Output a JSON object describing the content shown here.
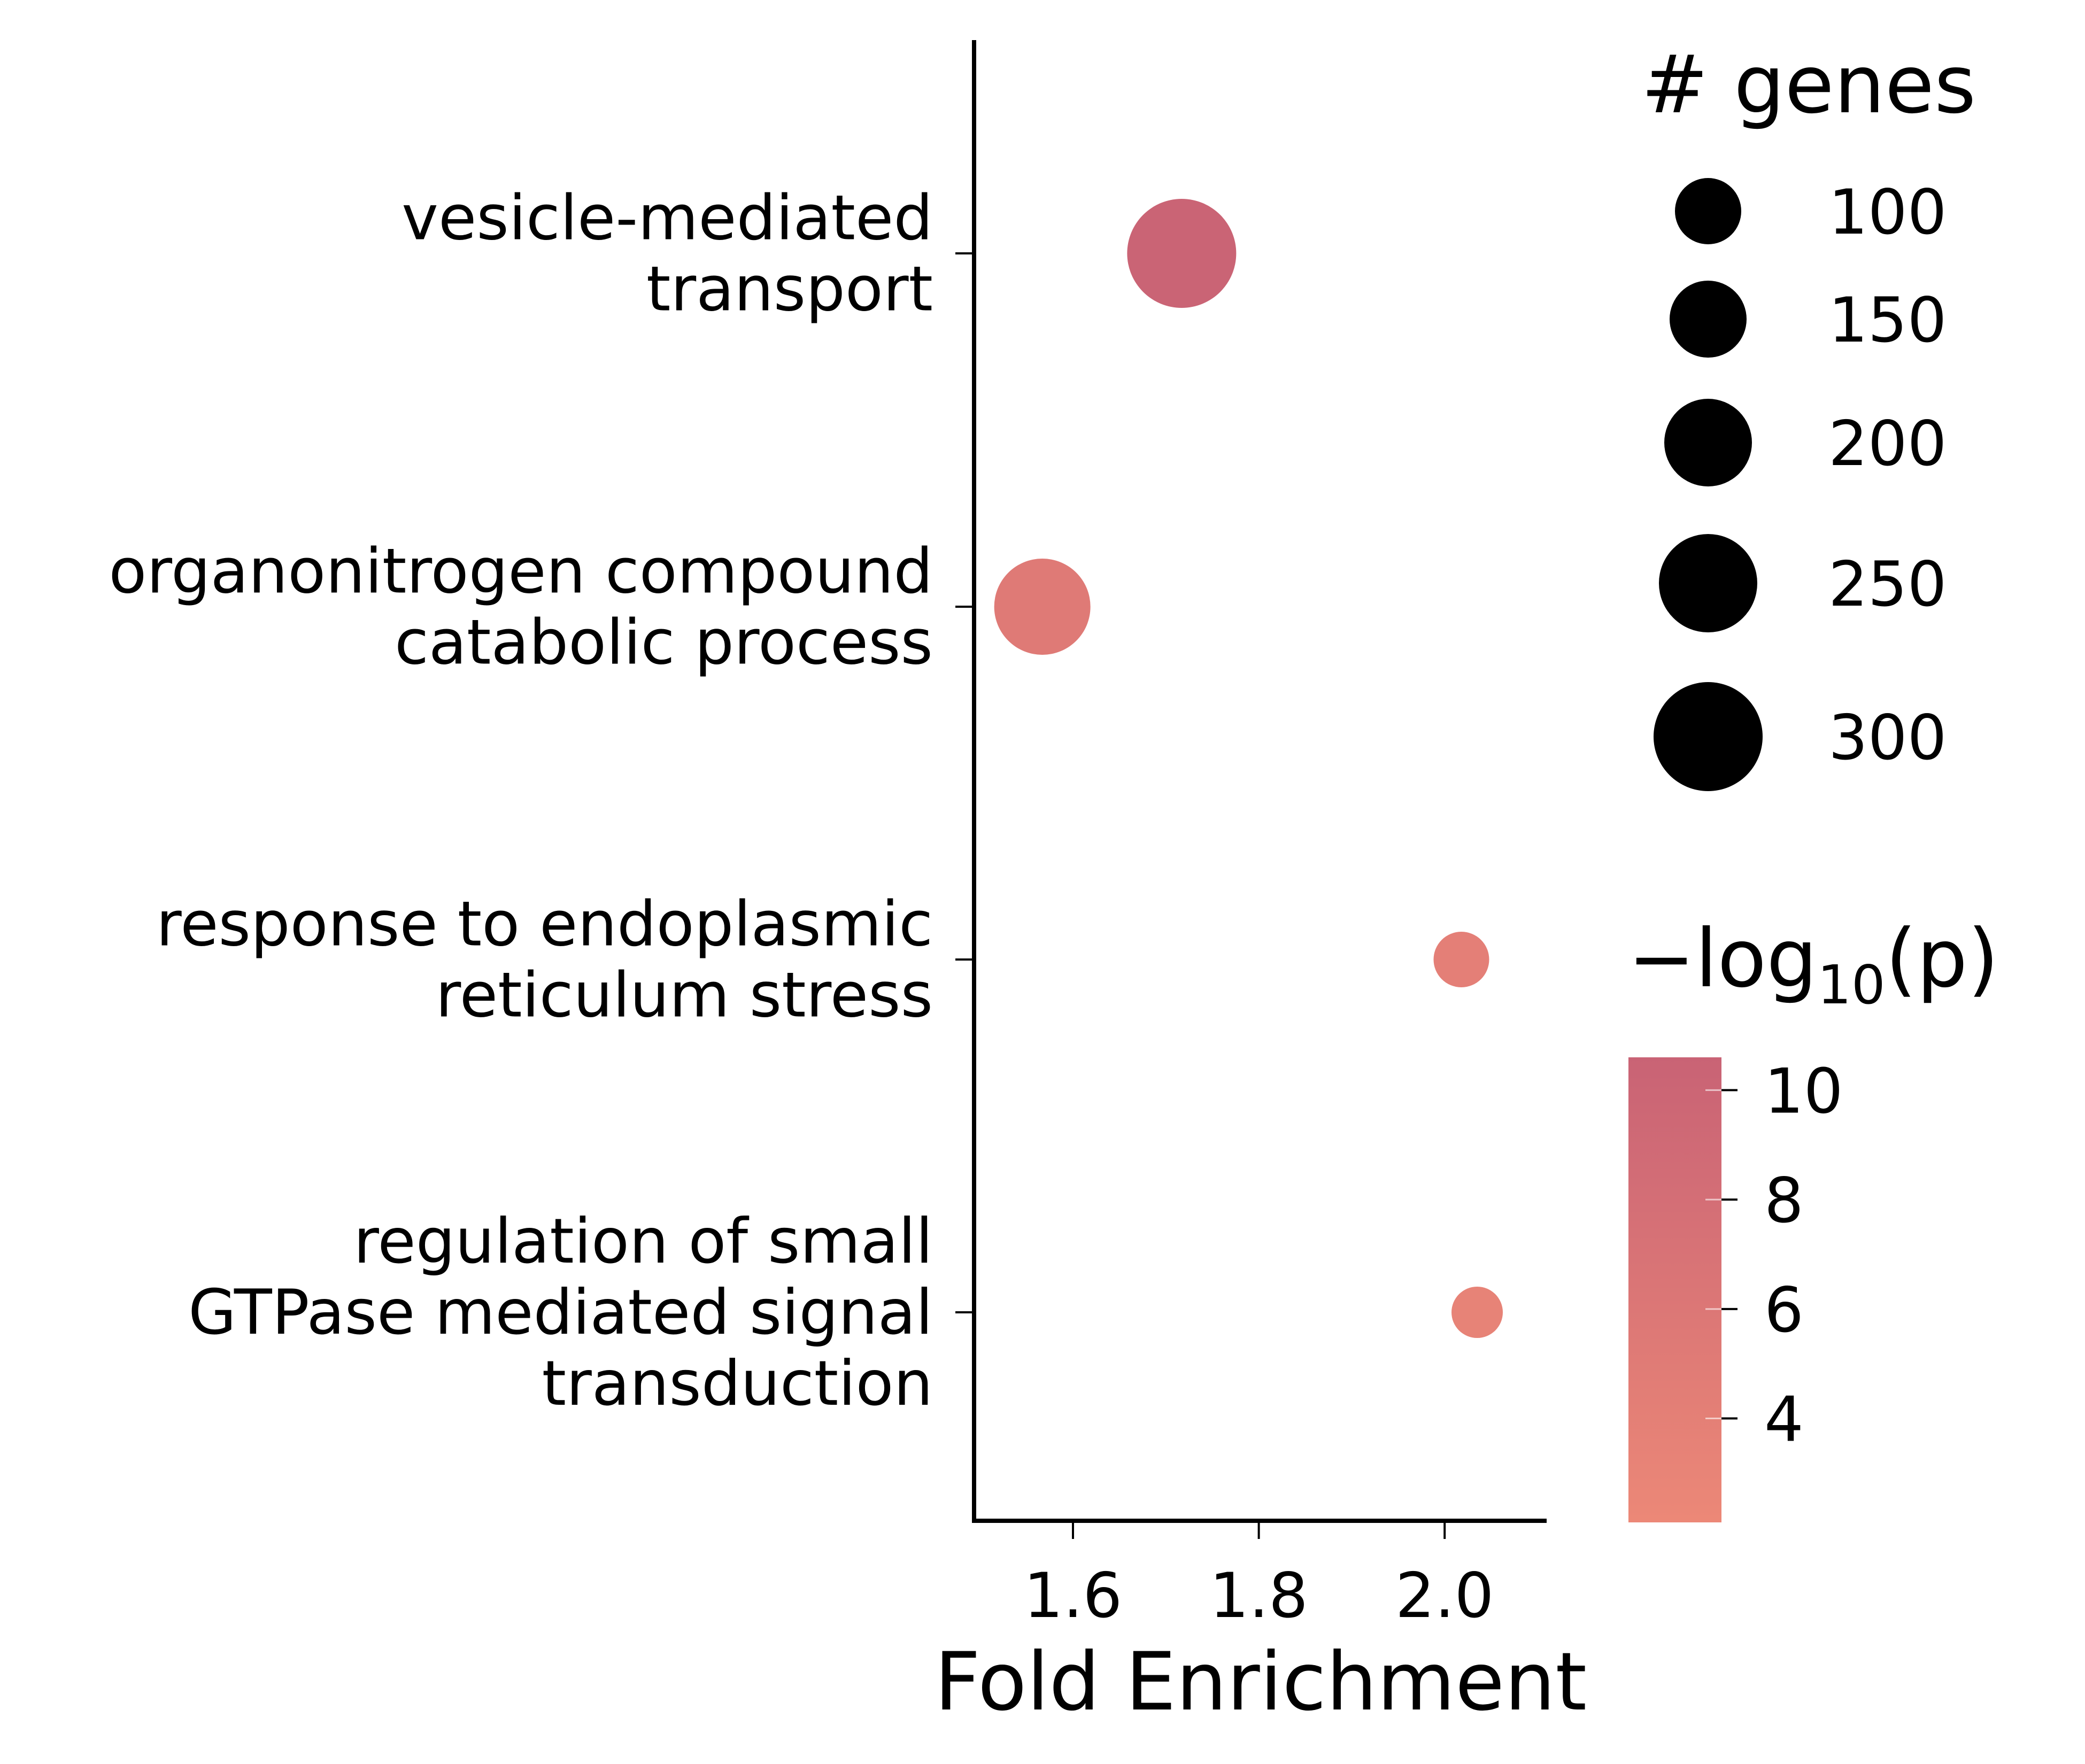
{
  "chart_data": {
    "type": "scatter",
    "xlabel": "Fold Enrichment",
    "xlim": [
      1.5,
      2.11
    ],
    "xticks": [
      "1.6",
      "1.8",
      "2.0"
    ],
    "xtick_values": [
      1.6,
      1.8,
      2.0
    ],
    "categories": [
      [
        "vesicle-mediated",
        "transport"
      ],
      [
        "organonitrogen compound",
        "catabolic process"
      ],
      [
        "response to endoplasmic",
        "reticulum stress"
      ],
      [
        "regulation of small",
        "GTPase mediated signal",
        "transduction"
      ]
    ],
    "points": [
      {
        "x": 1.717,
        "genes": 300,
        "neg_log10_p": 10.4
      },
      {
        "x": 1.567,
        "genes": 240,
        "neg_log10_p": 5.3
      },
      {
        "x": 2.018,
        "genes": 50,
        "neg_log10_p": 4.1
      },
      {
        "x": 2.035,
        "genes": 30,
        "neg_log10_p": 3.3
      }
    ],
    "size_legend": {
      "title": "# genes",
      "values": [
        100,
        150,
        200,
        250,
        300
      ],
      "labels": [
        "100",
        "150",
        "200",
        "250",
        "300"
      ]
    },
    "color_legend": {
      "title_main": "−log",
      "title_sub": "10",
      "title_tail": "(p)",
      "ticks": [
        10,
        8,
        6,
        4
      ],
      "tick_labels": [
        "10",
        "8",
        "6",
        "4"
      ],
      "range": [
        2.1,
        10.6
      ],
      "colors": [
        "#ec8877",
        "#c96375"
      ]
    }
  }
}
